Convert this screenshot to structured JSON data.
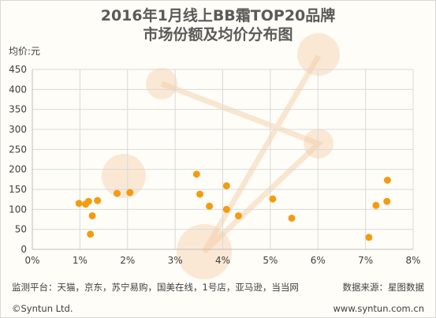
{
  "chart_data": {
    "type": "scatter",
    "title": "2016年1月线上BB霜TOP20品牌",
    "subtitle": "市场份额及均价分布图",
    "ylabel": "均价:元",
    "xlim": [
      0,
      8
    ],
    "ylim": [
      0,
      450
    ],
    "x_ticks": [
      "0%",
      "1%",
      "2%",
      "3%",
      "4%",
      "5%",
      "6%",
      "7%",
      "8%"
    ],
    "y_ticks": [
      "0",
      "50",
      "100",
      "150",
      "200",
      "250",
      "300",
      "350",
      "400",
      "450"
    ],
    "x_tick_values": [
      0,
      1,
      2,
      3,
      4,
      5,
      6,
      7,
      8
    ],
    "y_tick_values": [
      0,
      50,
      100,
      150,
      200,
      250,
      300,
      350,
      400,
      450
    ],
    "grid": true,
    "point_color": "#f39c12",
    "x": [
      0.98,
      1.12,
      1.18,
      1.22,
      1.26,
      1.37,
      1.78,
      2.05,
      3.45,
      3.52,
      3.72,
      4.08,
      4.08,
      4.33,
      5.05,
      5.45,
      7.07,
      7.22,
      7.45,
      7.46
    ],
    "y": [
      115,
      113,
      120,
      38,
      84,
      122,
      140,
      142,
      188,
      138,
      108,
      100,
      159,
      84,
      126,
      78,
      30,
      110,
      120,
      173
    ]
  },
  "footer": {
    "platforms": "监测平台：天猫，京东，苏宁易购，国美在线，1号店，亚马逊，当当网",
    "source": "数据来源：星图数据",
    "copyright": "©Syntun Ltd.",
    "website": "www.syntun.com.cn"
  },
  "watermark": {
    "color": "#f5c9a0"
  }
}
